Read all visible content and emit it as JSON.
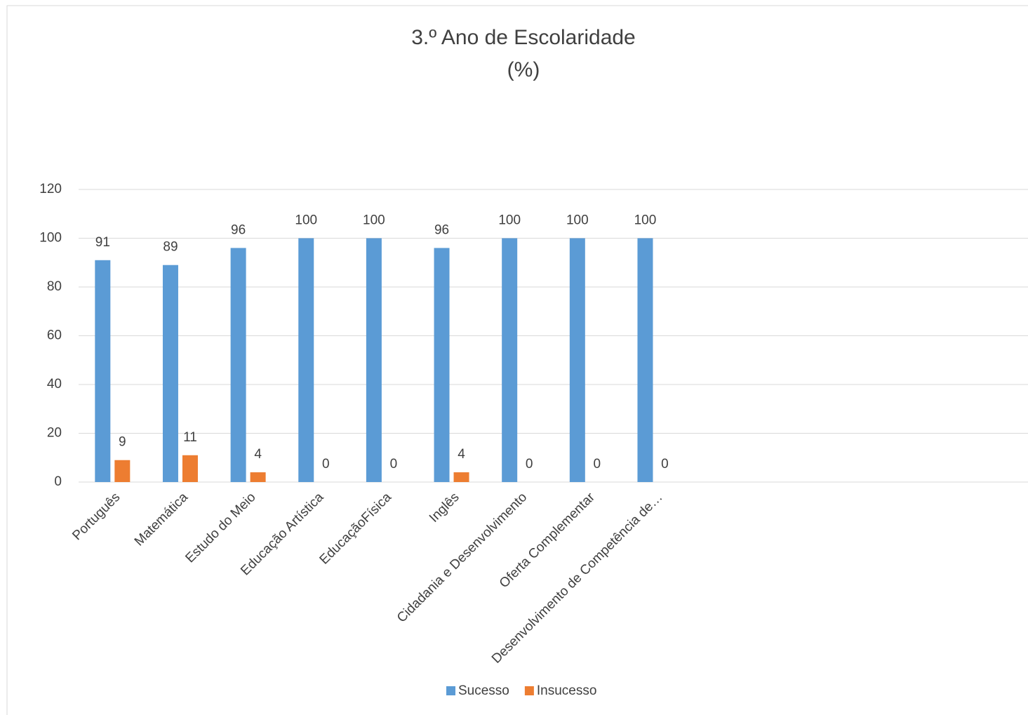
{
  "chart_data": {
    "type": "bar",
    "title": "3.º Ano de Escolaridade",
    "subtitle": "(%)",
    "categories": [
      "Português",
      "Matemática",
      "Estudo do Meio",
      "Educação Artística",
      "EducaçãoFísica",
      "Inglês",
      "Cidadania e Desenvolvimento",
      "Oferta Complementar",
      "Desenvolvimento de Competência de…",
      null,
      null,
      null,
      null,
      null
    ],
    "series": [
      {
        "name": "Sucesso",
        "color": "#5b9bd5",
        "values": [
          91,
          89,
          96,
          100,
          100,
          96,
          100,
          100,
          100,
          null,
          null,
          null,
          null,
          null
        ]
      },
      {
        "name": "Insucesso",
        "color": "#ed7d31",
        "values": [
          9,
          11,
          4,
          0,
          0,
          4,
          0,
          0,
          0,
          null,
          null,
          null,
          null,
          null
        ]
      }
    ],
    "ylim": [
      0,
      120
    ],
    "yticks": [
      0,
      20,
      40,
      60,
      80,
      100,
      120
    ],
    "grid": true,
    "legend": "bottom"
  }
}
